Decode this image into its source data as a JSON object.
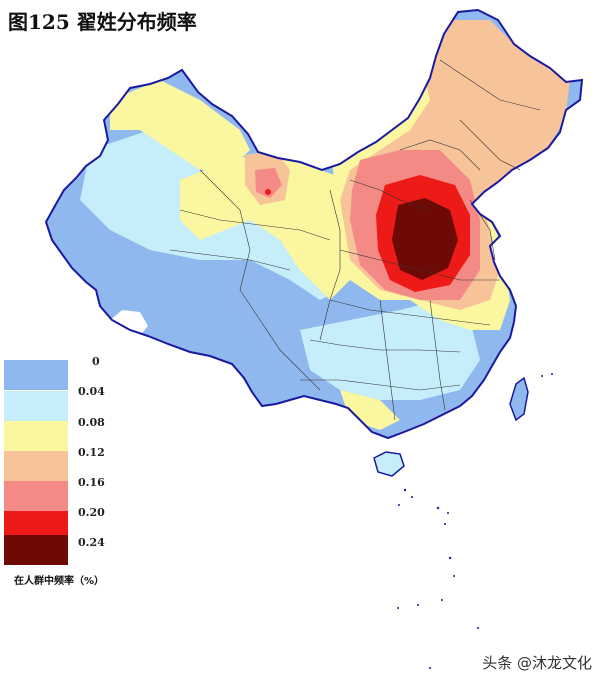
{
  "title": "图125  翟姓分布频率",
  "legend": {
    "caption": "在人群中频率（%）",
    "items": [
      {
        "label": "0",
        "color": "#8fb8ee"
      },
      {
        "label": "0.04",
        "color": "#c6eefa"
      },
      {
        "label": "0.08",
        "color": "#fbf7a0"
      },
      {
        "label": "0.12",
        "color": "#f7c49a"
      },
      {
        "label": "0.16",
        "color": "#f48a86"
      },
      {
        "label": "0.20",
        "color": "#ee1a18"
      },
      {
        "label": "0.24",
        "color": "#6e0a06"
      }
    ]
  },
  "watermark": "头条 @沐龙文化"
}
